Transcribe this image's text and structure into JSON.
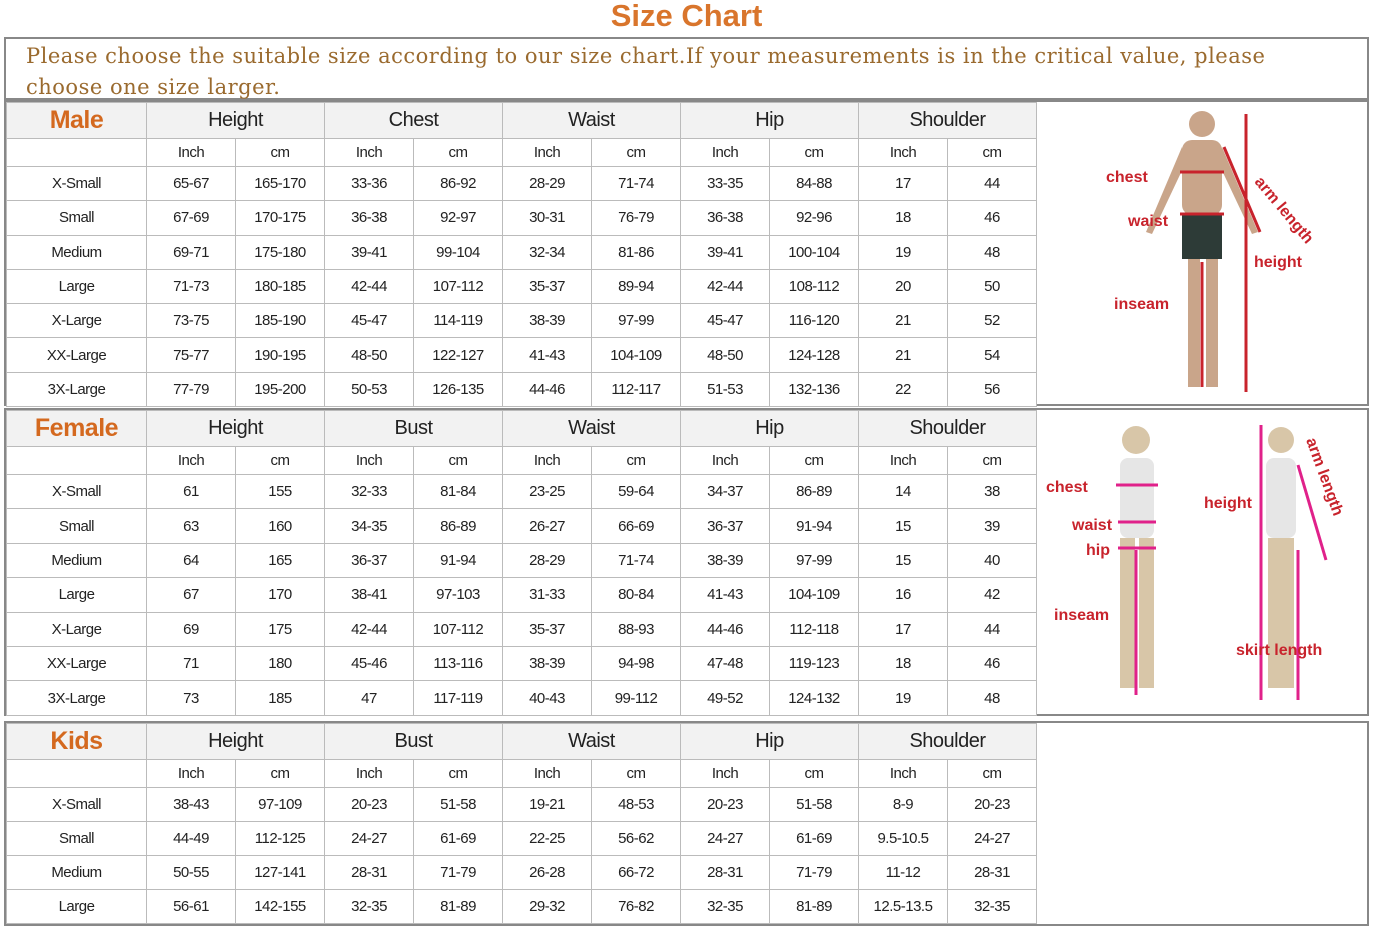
{
  "title": "Size Chart",
  "notice": "Please choose the suitable size according to our size chart.If your measurements is in the critical value, please choose one size larger.",
  "units": [
    "Inch",
    "cm"
  ],
  "accent": "#d9752c",
  "groups": [
    {
      "name": "Male",
      "measures": [
        "Height",
        "Chest",
        "Waist",
        "Hip",
        "Shoulder"
      ],
      "rows": [
        [
          "X-Small",
          "65-67",
          "165-170",
          "33-36",
          "86-92",
          "28-29",
          "71-74",
          "33-35",
          "84-88",
          "17",
          "44"
        ],
        [
          "Small",
          "67-69",
          "170-175",
          "36-38",
          "92-97",
          "30-31",
          "76-79",
          "36-38",
          "92-96",
          "18",
          "46"
        ],
        [
          "Medium",
          "69-71",
          "175-180",
          "39-41",
          "99-104",
          "32-34",
          "81-86",
          "39-41",
          "100-104",
          "19",
          "48"
        ],
        [
          "Large",
          "71-73",
          "180-185",
          "42-44",
          "107-112",
          "35-37",
          "89-94",
          "42-44",
          "108-112",
          "20",
          "50"
        ],
        [
          "X-Large",
          "73-75",
          "185-190",
          "45-47",
          "114-119",
          "38-39",
          "97-99",
          "45-47",
          "116-120",
          "21",
          "52"
        ],
        [
          "XX-Large",
          "75-77",
          "190-195",
          "48-50",
          "122-127",
          "41-43",
          "104-109",
          "48-50",
          "124-128",
          "21",
          "54"
        ],
        [
          "3X-Large",
          "77-79",
          "195-200",
          "50-53",
          "126-135",
          "44-46",
          "112-117",
          "51-53",
          "132-136",
          "22",
          "56"
        ]
      ],
      "figure_labels": [
        "chest",
        "waist",
        "arm length",
        "height",
        "inseam"
      ]
    },
    {
      "name": "Female",
      "measures": [
        "Height",
        "Bust",
        "Waist",
        "Hip",
        "Shoulder"
      ],
      "rows": [
        [
          "X-Small",
          "61",
          "155",
          "32-33",
          "81-84",
          "23-25",
          "59-64",
          "34-37",
          "86-89",
          "14",
          "38"
        ],
        [
          "Small",
          "63",
          "160",
          "34-35",
          "86-89",
          "26-27",
          "66-69",
          "36-37",
          "91-94",
          "15",
          "39"
        ],
        [
          "Medium",
          "64",
          "165",
          "36-37",
          "91-94",
          "28-29",
          "71-74",
          "38-39",
          "97-99",
          "15",
          "40"
        ],
        [
          "Large",
          "67",
          "170",
          "38-41",
          "97-103",
          "31-33",
          "80-84",
          "41-43",
          "104-109",
          "16",
          "42"
        ],
        [
          "X-Large",
          "69",
          "175",
          "42-44",
          "107-112",
          "35-37",
          "88-93",
          "44-46",
          "112-118",
          "17",
          "44"
        ],
        [
          "XX-Large",
          "71",
          "180",
          "45-46",
          "113-116",
          "38-39",
          "94-98",
          "47-48",
          "119-123",
          "18",
          "46"
        ],
        [
          "3X-Large",
          "73",
          "185",
          "47",
          "117-119",
          "40-43",
          "99-112",
          "49-52",
          "124-132",
          "19",
          "48"
        ]
      ],
      "figure_labels": [
        "chest",
        "waist",
        "hip",
        "inseam",
        "height",
        "arm length",
        "skirt length"
      ]
    },
    {
      "name": "Kids",
      "measures": [
        "Height",
        "Bust",
        "Waist",
        "Hip",
        "Shoulder"
      ],
      "rows": [
        [
          "X-Small",
          "38-43",
          "97-109",
          "20-23",
          "51-58",
          "19-21",
          "48-53",
          "20-23",
          "51-58",
          "8-9",
          "20-23"
        ],
        [
          "Small",
          "44-49",
          "112-125",
          "24-27",
          "61-69",
          "22-25",
          "56-62",
          "24-27",
          "61-69",
          "9.5-10.5",
          "24-27"
        ],
        [
          "Medium",
          "50-55",
          "127-141",
          "28-31",
          "71-79",
          "26-28",
          "66-72",
          "28-31",
          "71-79",
          "11-12",
          "28-31"
        ],
        [
          "Large",
          "56-61",
          "142-155",
          "32-35",
          "81-89",
          "29-32",
          "76-82",
          "32-35",
          "81-89",
          "12.5-13.5",
          "32-35"
        ]
      ]
    }
  ]
}
